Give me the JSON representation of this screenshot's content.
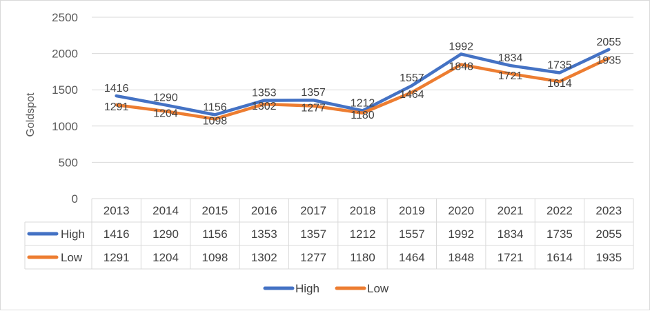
{
  "chart_data": {
    "type": "line",
    "categories": [
      "2013",
      "2014",
      "2015",
      "2016",
      "2017",
      "2018",
      "2019",
      "2020",
      "2021",
      "2022",
      "2023"
    ],
    "series": [
      {
        "name": "High",
        "color": "#4472C4",
        "values": [
          1416,
          1290,
          1156,
          1353,
          1357,
          1212,
          1557,
          1992,
          1834,
          1735,
          2055
        ]
      },
      {
        "name": "Low",
        "color": "#ED7D31",
        "values": [
          1291,
          1204,
          1098,
          1302,
          1277,
          1180,
          1464,
          1848,
          1721,
          1614,
          1935
        ]
      }
    ],
    "title": "",
    "xlabel": "",
    "ylabel": "Goldspot",
    "ylim": [
      0,
      2500
    ],
    "yticks": [
      0,
      500,
      1000,
      1500,
      2000,
      2500
    ],
    "grid": true,
    "data_table": true,
    "legend": "bottom"
  }
}
